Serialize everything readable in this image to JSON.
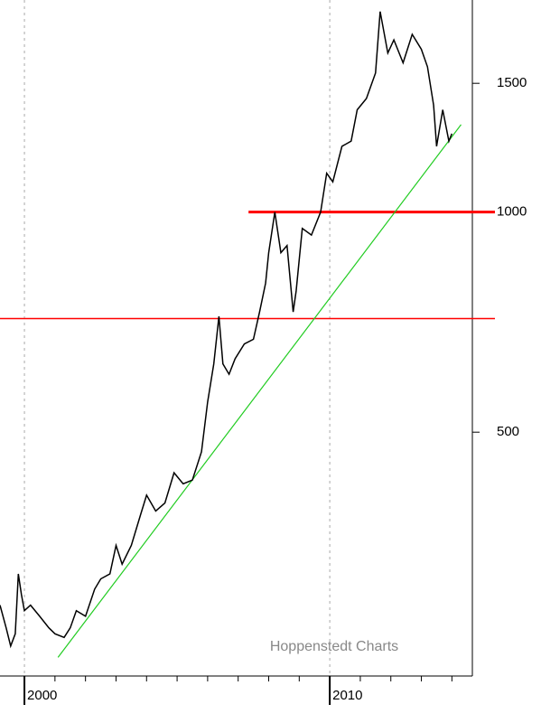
{
  "chart_data": {
    "type": "line",
    "log_y": true,
    "annotation": "Hoppenstedt Charts",
    "x": [
      1999.2,
      1999.4,
      1999.55,
      1999.7,
      1999.8,
      1999.9,
      2000.0,
      2000.2,
      2000.5,
      2000.8,
      2001.0,
      2001.3,
      2001.5,
      2001.7,
      2002.0,
      2002.3,
      2002.5,
      2002.8,
      2003.0,
      2003.2,
      2003.5,
      2003.8,
      2004.0,
      2004.3,
      2004.6,
      2004.9,
      2005.2,
      2005.5,
      2005.8,
      2006.0,
      2006.2,
      2006.37,
      2006.5,
      2006.7,
      2006.9,
      2007.2,
      2007.5,
      2007.7,
      2007.9,
      2008.0,
      2008.2,
      2008.4,
      2008.6,
      2008.8,
      2008.9,
      2009.1,
      2009.4,
      2009.7,
      2009.9,
      2010.1,
      2010.4,
      2010.7,
      2010.9,
      2011.2,
      2011.5,
      2011.65,
      2011.9,
      2012.1,
      2012.4,
      2012.7,
      2013.0,
      2013.2,
      2013.4,
      2013.5,
      2013.7,
      2013.9,
      2014.0
    ],
    "series": [
      {
        "color": "#000000",
        "values": [
          290,
          270,
          255,
          265,
          320,
          300,
          285,
          290,
          280,
          270,
          265,
          262,
          270,
          285,
          280,
          305,
          315,
          320,
          350,
          330,
          350,
          385,
          410,
          390,
          400,
          440,
          425,
          430,
          470,
          550,
          620,
          720,
          620,
          600,
          630,
          660,
          670,
          730,
          800,
          880,
          1000,
          880,
          900,
          730,
          780,
          950,
          930,
          1000,
          1130,
          1100,
          1230,
          1250,
          1380,
          1430,
          1550,
          1880,
          1650,
          1720,
          1600,
          1750,
          1670,
          1580,
          1400,
          1230,
          1380,
          1250,
          1280
        ]
      }
    ],
    "xlim": [
      1999.2,
      2014.67
    ],
    "ylim": [
      232,
      1950
    ],
    "xticks": [
      2000,
      2010
    ],
    "yticks": [
      500,
      1000,
      1500
    ],
    "hlines": [
      {
        "value": 1000,
        "from": 2007.34,
        "color": "#ff0000",
        "width": 3
      },
      {
        "value": 715,
        "from": 1999.2,
        "color": "#ff0000",
        "width": 1.5
      }
    ],
    "trendline": {
      "x": [
        2001.1,
        2014.3
      ],
      "values": [
        246,
        1317
      ],
      "color": "#22cc22"
    }
  }
}
